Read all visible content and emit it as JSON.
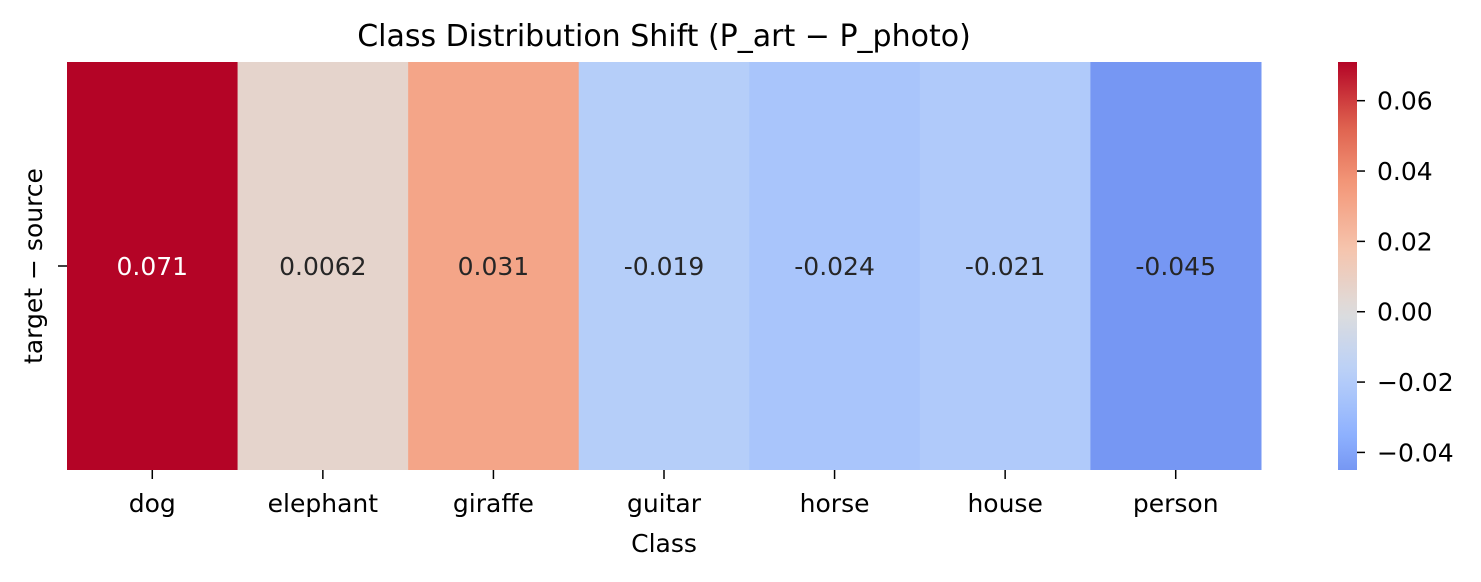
{
  "chart_data": {
    "type": "heatmap",
    "title": "Class Distribution Shift (P_art − P_photo)",
    "xlabel": "Class",
    "ylabel": "",
    "x_categories": [
      "dog",
      "elephant",
      "giraffe",
      "guitar",
      "horse",
      "house",
      "person"
    ],
    "y_categories": [
      "target − source"
    ],
    "values": [
      [
        0.071,
        0.0062,
        0.031,
        -0.019,
        -0.024,
        -0.021,
        -0.045
      ]
    ],
    "cell_labels": [
      [
        "0.071",
        "0.0062",
        "0.031",
        "-0.019",
        "-0.024",
        "-0.021",
        "-0.045"
      ]
    ],
    "colormap": "coolwarm",
    "center": 0,
    "colorbar": {
      "range": [
        -0.045,
        0.071
      ],
      "ticks": [
        0.06,
        0.04,
        0.02,
        0.0,
        -0.02,
        -0.04
      ],
      "tick_labels": [
        "0.06",
        "0.04",
        "0.02",
        "0.00",
        "−0.02",
        "−0.04"
      ]
    },
    "colors": {
      "cold": "#3b4cc0",
      "neutral": "#dddddd",
      "hot": "#b40426",
      "text_dark": "#262626",
      "text_light": "#ffffff"
    }
  }
}
